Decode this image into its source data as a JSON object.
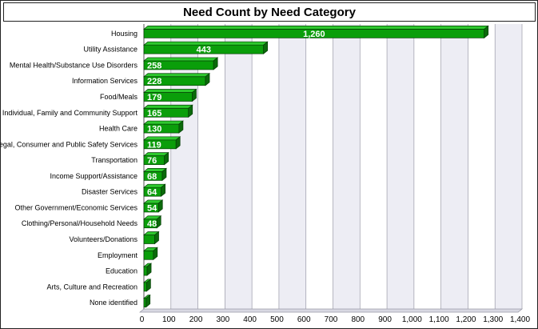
{
  "chart_data": {
    "type": "bar",
    "orientation": "horizontal",
    "title": "Need Count by Need Category",
    "xlabel": "",
    "ylabel": "",
    "xlim": [
      0,
      1400
    ],
    "ticks": [
      "0",
      "100",
      "200",
      "300",
      "400",
      "500",
      "600",
      "700",
      "800",
      "900",
      "1,000",
      "1,100",
      "1,200",
      "1,300",
      "1,400"
    ],
    "categories": [
      "Housing",
      "Utility Assistance",
      "Mental Health/Substance Use Disorders",
      "Information Services",
      "Food/Meals",
      "Individual, Family and Community Support",
      "Health Care",
      "Legal, Consumer and Public Safety Services",
      "Transportation",
      "Income Support/Assistance",
      "Disaster Services",
      "Other Government/Economic Services",
      "Clothing/Personal/Household Needs",
      "Volunteers/Donations",
      "Employment",
      "Education",
      "Arts, Culture and Recreation",
      "None identified"
    ],
    "values": [
      1260,
      443,
      258,
      228,
      179,
      165,
      130,
      119,
      76,
      68,
      64,
      54,
      48,
      40,
      35,
      12,
      10,
      8
    ],
    "data_labels": [
      "1,260",
      "443",
      "258",
      "228",
      "179",
      "165",
      "130",
      "119",
      "76",
      "68",
      "64",
      "54",
      "48",
      "",
      "",
      "",
      "",
      ""
    ],
    "grid": true,
    "colors": {
      "bar_front": "#0a9e0a",
      "bar_top": "#2ec92e",
      "bar_side": "#0b6a0b",
      "bar_edge": "#053f05",
      "plot_bg": "#ffffff",
      "grid_band": "#ededf4",
      "grid_line": "#9a9aa8"
    }
  }
}
